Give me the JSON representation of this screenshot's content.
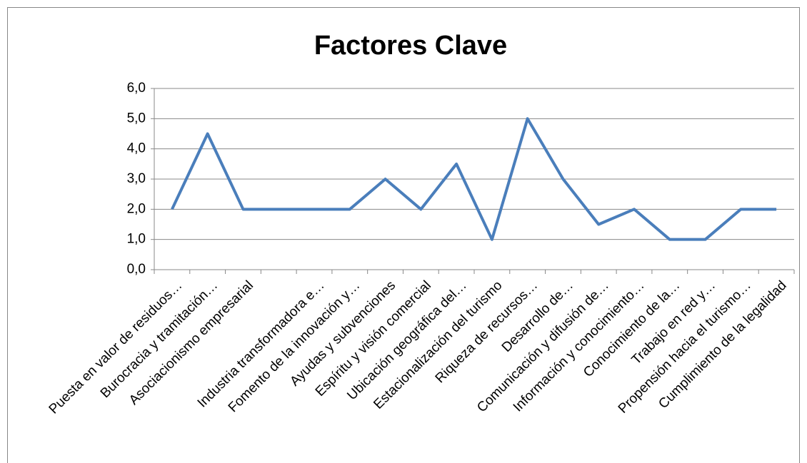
{
  "chart_data": {
    "type": "line",
    "title": "Factores Clave",
    "categories": [
      "Puesta en valor de residuos…",
      "Burocracia y tramitación…",
      "Asociacionismo  empresarial",
      null,
      "Industria transformadora e…",
      "Fomento de la innovación y…",
      "Ayudas y subvenciones",
      "Espíritu y visión comercial",
      "Ubicación geográfica del…",
      "Estacionalización del turismo",
      "Riqueza de recursos…",
      "Desarrollo de…",
      "Comunicación y difusión de…",
      "Información y conocimiento…",
      "Conocimiento de la…",
      "Trabajo en red y…",
      "Propensión hacia el turismo…",
      "Cumplimiento de la legalidad"
    ],
    "values": [
      2,
      4.5,
      2,
      2,
      2,
      2,
      3,
      2,
      3.5,
      1,
      5,
      3,
      1.5,
      2,
      1,
      1,
      2,
      2
    ],
    "color": "#4a7ebb",
    "ylim": [
      0,
      6
    ],
    "yticks": [
      {
        "value": 0,
        "label": "0,0"
      },
      {
        "value": 1,
        "label": "1,0"
      },
      {
        "value": 2,
        "label": "2,0"
      },
      {
        "value": 3,
        "label": "3,0"
      },
      {
        "value": 4,
        "label": "4,0"
      },
      {
        "value": 5,
        "label": "5,0"
      },
      {
        "value": 6,
        "label": "6,0"
      }
    ],
    "grid": true
  }
}
